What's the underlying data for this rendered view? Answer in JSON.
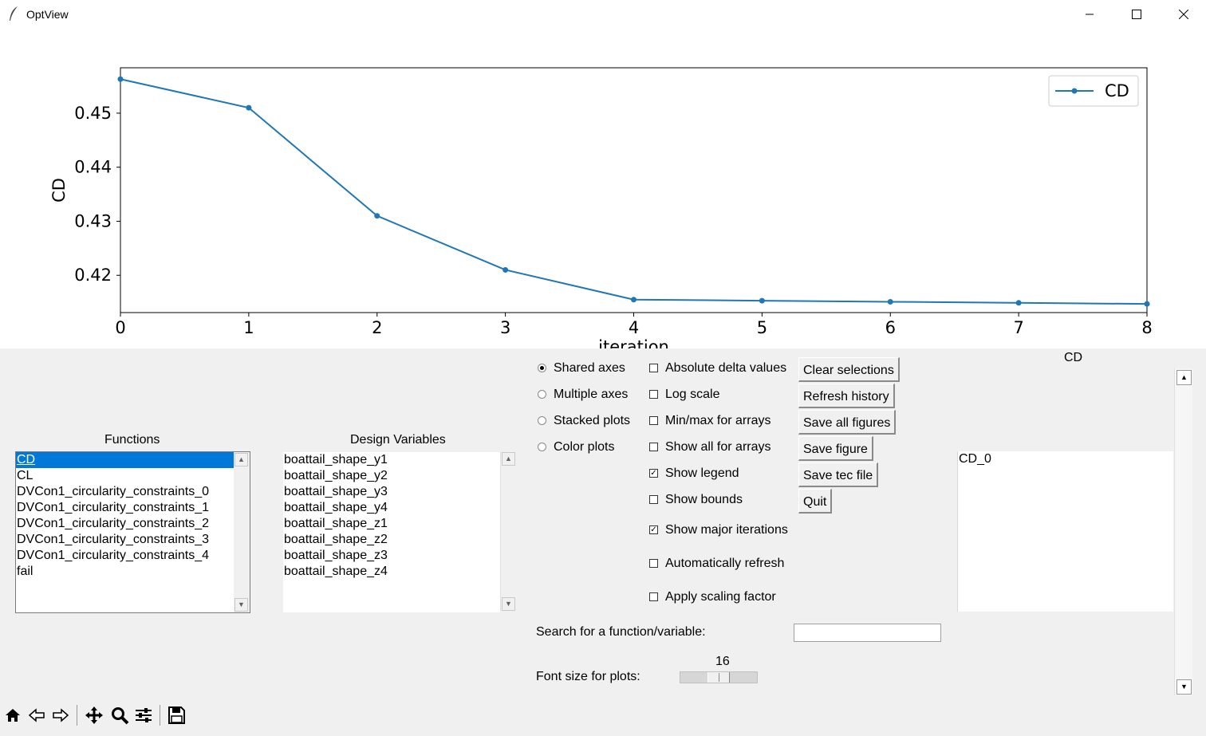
{
  "window": {
    "title": "OptView",
    "minimize_icon": "minimize-icon",
    "maximize_icon": "maximize-icon",
    "close_icon": "close-icon"
  },
  "chart_data": {
    "type": "line",
    "x": [
      0,
      1,
      2,
      3,
      4,
      5,
      6,
      7,
      8
    ],
    "series": [
      {
        "name": "CD",
        "values": [
          0.4563,
          0.451,
          0.431,
          0.421,
          0.4155,
          0.4153,
          0.4151,
          0.4149,
          0.4147
        ],
        "color": "#1f77b4"
      }
    ],
    "xlabel": "iteration",
    "ylabel": "CD",
    "xticks": [
      "0",
      "1",
      "2",
      "3",
      "4",
      "5",
      "6",
      "7",
      "8"
    ],
    "yticks": [
      "0.42",
      "0.43",
      "0.44",
      "0.45"
    ],
    "xlim": [
      0,
      8
    ],
    "ylim": [
      0.4131,
      0.4584
    ],
    "legend_position": "top-right",
    "grid": false
  },
  "functions": {
    "header": "Functions",
    "items": [
      "CD",
      "CL",
      "DVCon1_circularity_constraints_0",
      "DVCon1_circularity_constraints_1",
      "DVCon1_circularity_constraints_2",
      "DVCon1_circularity_constraints_3",
      "DVCon1_circularity_constraints_4",
      "fail"
    ],
    "selected": "CD"
  },
  "design_variables": {
    "header": "Design Variables",
    "items": [
      "boattail_shape_y1",
      "boattail_shape_y2",
      "boattail_shape_y3",
      "boattail_shape_y4",
      "boattail_shape_z1",
      "boattail_shape_z2",
      "boattail_shape_z3",
      "boattail_shape_z4"
    ]
  },
  "radios": {
    "shared": "Shared axes",
    "multiple": "Multiple axes",
    "stacked": "Stacked plots",
    "color": "Color plots",
    "selected": "Shared axes"
  },
  "checks": {
    "abs_delta": {
      "label": "Absolute delta values",
      "checked": false
    },
    "log_scale": {
      "label": "Log scale",
      "checked": false
    },
    "minmax": {
      "label": "Min/max for arrays",
      "checked": false
    },
    "show_all": {
      "label": "Show all for arrays",
      "checked": false
    },
    "show_legend": {
      "label": "Show legend",
      "checked": true
    },
    "show_bounds": {
      "label": "Show bounds",
      "checked": false
    },
    "show_major": {
      "label": "Show major iterations",
      "checked": true
    },
    "auto_refresh": {
      "label": "Automatically refresh",
      "checked": false
    },
    "scaling": {
      "label": "Apply scaling factor",
      "checked": false
    }
  },
  "buttons": {
    "clear": "Clear selections",
    "refresh": "Refresh history",
    "save_all": "Save all figures",
    "save_fig": "Save figure",
    "save_tec": "Save tec file",
    "quit": "Quit"
  },
  "right_panel": {
    "header": "CD",
    "items": [
      "CD_0"
    ]
  },
  "search": {
    "label": "Search for a function/variable:",
    "value": ""
  },
  "font_size": {
    "label": "Font size for plots:",
    "value": 16
  },
  "toolbar": {
    "icons": [
      "home-icon",
      "back-icon",
      "forward-icon",
      "pan-icon",
      "zoom-icon",
      "configure-icon",
      "save-icon"
    ]
  }
}
